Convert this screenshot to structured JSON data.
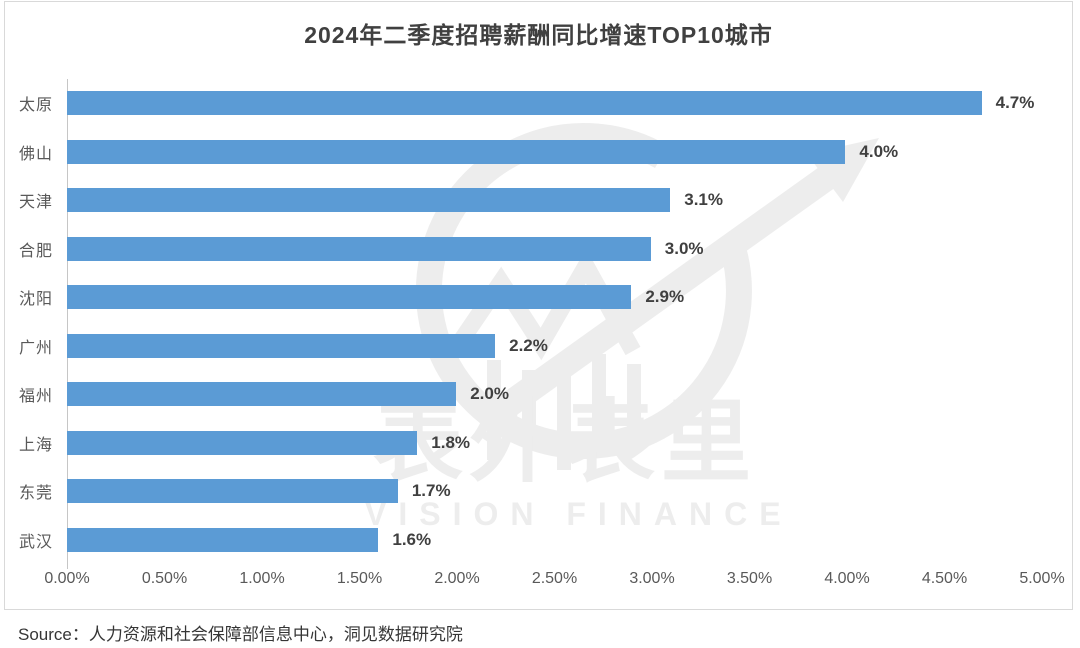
{
  "chart_data": {
    "type": "bar",
    "orientation": "horizontal",
    "title": "2024年二季度招聘薪酬同比增速TOP10城市",
    "categories": [
      "太原",
      "佛山",
      "天津",
      "合肥",
      "沈阳",
      "广州",
      "福州",
      "上海",
      "东莞",
      "武汉"
    ],
    "values": [
      4.7,
      4.0,
      3.1,
      3.0,
      2.9,
      2.2,
      2.0,
      1.8,
      1.7,
      1.6
    ],
    "value_labels": [
      "4.7%",
      "4.0%",
      "3.1%",
      "3.0%",
      "2.9%",
      "2.2%",
      "2.0%",
      "1.8%",
      "1.7%",
      "1.6%"
    ],
    "xlabel": "",
    "ylabel": "",
    "xlim": [
      0,
      5
    ],
    "x_ticks": [
      "0.00%",
      "0.50%",
      "1.00%",
      "1.50%",
      "2.00%",
      "2.50%",
      "3.00%",
      "3.50%",
      "4.00%",
      "4.50%",
      "5.00%"
    ],
    "grid": false,
    "legend": null,
    "bar_color": "#5b9bd5"
  },
  "watermark": {
    "logo_icon": "vision-finance-logo",
    "text": "表外表里",
    "subtext": "VISION FINANCE"
  },
  "source": {
    "label": "Source：人力资源和社会保障部信息中心，洞见数据研究院"
  },
  "colors": {
    "bar": "#5b9bd5",
    "title_text": "#404040",
    "value_text": "#404040",
    "axis_text": "#595959",
    "category_text": "#595959",
    "axis_line": "#c6c6c6",
    "card_border": "#d9d9d9",
    "watermark": "#ededed",
    "source_text": "#363636",
    "background": "#ffffff"
  }
}
